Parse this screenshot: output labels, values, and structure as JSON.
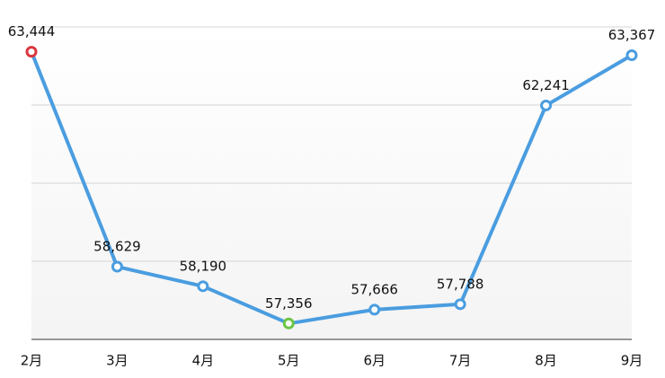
{
  "chart_data": {
    "type": "line",
    "categories": [
      "2月",
      "3月",
      "4月",
      "5月",
      "6月",
      "7月",
      "8月",
      "9月"
    ],
    "series": [
      {
        "color": "#4a9de0",
        "values": [
          63444,
          58629,
          58190,
          57356,
          57666,
          57788,
          62241,
          63367
        ],
        "value_labels": [
          "63,444",
          "58,629",
          "58,190",
          "57,356",
          "57,666",
          "57,788",
          "62,241",
          "63,367"
        ],
        "marker_colors": [
          "#d9363e",
          "#4a9de0",
          "#4a9de0",
          "#6cc644",
          "#4a9de0",
          "#4a9de0",
          "#4a9de0",
          "#4a9de0"
        ]
      }
    ],
    "ylim": [
      57000,
      64000
    ],
    "yticks": [
      57000,
      58750,
      60500,
      62250,
      64000
    ],
    "grid": true
  }
}
